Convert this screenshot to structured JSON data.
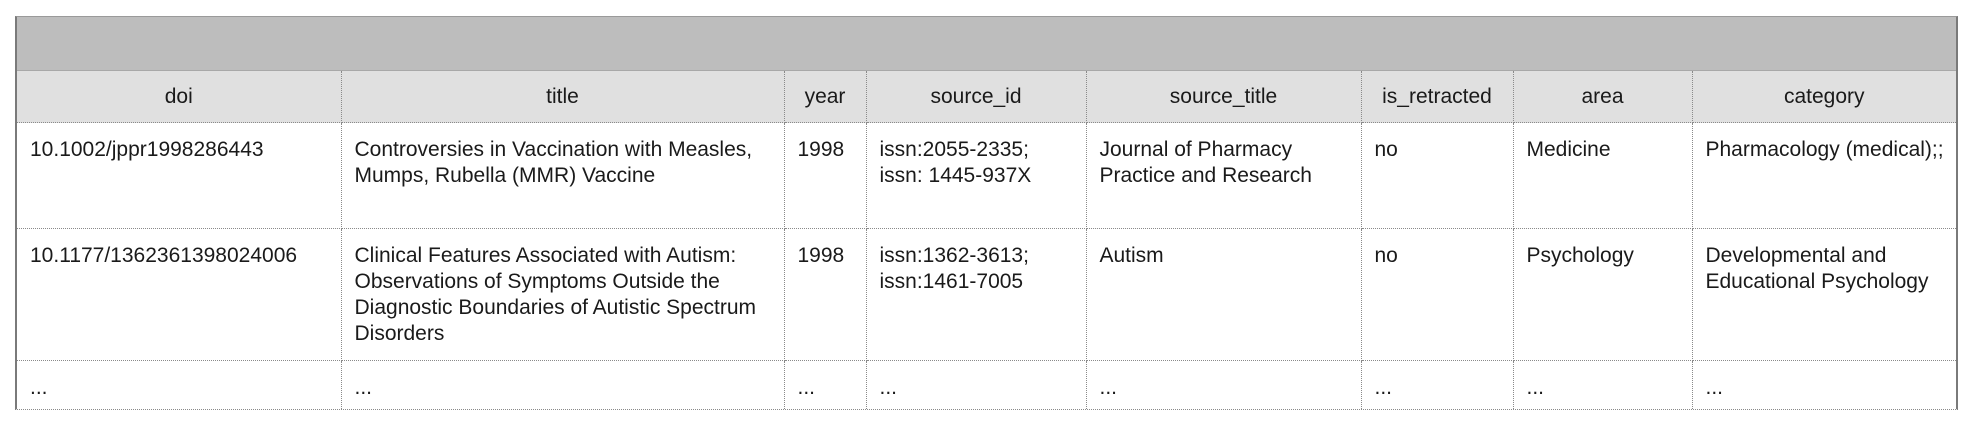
{
  "table": {
    "title": "",
    "columns": [
      "doi",
      "title",
      "year",
      "source_id",
      "source_title",
      "is_retracted",
      "area",
      "category"
    ],
    "rows": [
      {
        "doi": "10.1002/jppr1998286443",
        "title": "Controversies in Vaccination with Measles, Mumps, Rubella (MMR) Vaccine",
        "year": "1998",
        "source_id": "issn:2055-2335; issn: 1445-937X",
        "source_title": "Journal of Pharmacy Practice and Research",
        "is_retracted": "no",
        "area": "Medicine",
        "category": "Pharmacology (medical);;"
      },
      {
        "doi": "10.1177/1362361398024006",
        "title": "Clinical Features Associated with Autism: Observations of Symptoms Outside the Diagnostic Boundaries of Autistic Spectrum Disorders",
        "year": "1998",
        "source_id": "issn:1362-3613; issn:1461-7005",
        "source_title": "Autism",
        "is_retracted": "no",
        "area": "Psychology",
        "category": "Developmental and Educational Psychology"
      },
      {
        "doi": "...",
        "title": "...",
        "year": "...",
        "source_id": "...",
        "source_title": "...",
        "is_retracted": "...",
        "area": "...",
        "category": "..."
      }
    ]
  }
}
